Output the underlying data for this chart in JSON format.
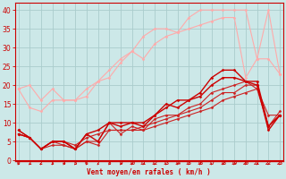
{
  "background_color": "#cce8e8",
  "grid_color": "#aacccc",
  "xlabel": "Vent moyen/en rafales ( km/h )",
  "xlabel_color": "#cc0000",
  "tick_label_color": "#cc0000",
  "axis_color": "#cc0000",
  "x_ticks": [
    0,
    1,
    2,
    3,
    4,
    5,
    6,
    7,
    8,
    9,
    10,
    11,
    12,
    13,
    14,
    15,
    16,
    17,
    18,
    19,
    20,
    21,
    22,
    23
  ],
  "ylim": [
    0,
    42
  ],
  "xlim": [
    -0.3,
    23.3
  ],
  "yticks": [
    0,
    5,
    10,
    15,
    20,
    25,
    30,
    35,
    40
  ],
  "series": [
    {
      "x": [
        0,
        1,
        2,
        3,
        4,
        5,
        6,
        7,
        8,
        9,
        10,
        11,
        12,
        13,
        14,
        15,
        16,
        17,
        18,
        19,
        20,
        21,
        22,
        23
      ],
      "y": [
        19,
        20,
        16,
        19,
        16,
        16,
        17,
        21,
        24,
        27,
        29,
        33,
        35,
        35,
        34,
        38,
        40,
        40,
        40,
        40,
        40,
        27,
        40,
        23
      ],
      "color": "#ffaaaa",
      "linewidth": 0.8,
      "marker": "D",
      "markersize": 1.5
    },
    {
      "x": [
        0,
        1,
        2,
        3,
        4,
        5,
        6,
        7,
        8,
        9,
        10,
        11,
        12,
        13,
        14,
        15,
        16,
        17,
        18,
        19,
        20,
        21,
        22,
        23
      ],
      "y": [
        19,
        14,
        13,
        16,
        16,
        16,
        19,
        21,
        22,
        26,
        29,
        27,
        31,
        33,
        34,
        35,
        36,
        37,
        38,
        38,
        22,
        27,
        27,
        23
      ],
      "color": "#ffaaaa",
      "linewidth": 0.8,
      "marker": "D",
      "markersize": 1.5
    },
    {
      "x": [
        0,
        1,
        2,
        3,
        4,
        5,
        6,
        7,
        8,
        9,
        10,
        11,
        12,
        13,
        14,
        15,
        16,
        17,
        18,
        19,
        20,
        21,
        22,
        23
      ],
      "y": [
        8,
        6,
        3,
        5,
        5,
        4,
        6,
        7,
        8,
        8,
        8,
        8,
        9,
        10,
        11,
        12,
        13,
        14,
        16,
        17,
        18,
        19,
        12,
        12
      ],
      "color": "#cc2222",
      "linewidth": 0.8,
      "marker": "D",
      "markersize": 1.5
    },
    {
      "x": [
        0,
        1,
        2,
        3,
        4,
        5,
        6,
        7,
        8,
        9,
        10,
        11,
        12,
        13,
        14,
        15,
        16,
        17,
        18,
        19,
        20,
        21,
        22,
        23
      ],
      "y": [
        7,
        6,
        3,
        4,
        4,
        3,
        5,
        4,
        8,
        8,
        8,
        9,
        10,
        11,
        12,
        13,
        14,
        16,
        18,
        18,
        20,
        20,
        9,
        13
      ],
      "color": "#cc2222",
      "linewidth": 0.8,
      "marker": "D",
      "markersize": 1.5
    },
    {
      "x": [
        0,
        1,
        2,
        3,
        4,
        5,
        6,
        7,
        8,
        9,
        10,
        11,
        12,
        13,
        14,
        15,
        16,
        17,
        18,
        19,
        20,
        21,
        22,
        23
      ],
      "y": [
        7,
        6,
        3,
        5,
        4,
        3,
        5,
        5,
        10,
        7,
        9,
        8,
        11,
        12,
        12,
        14,
        15,
        18,
        19,
        20,
        21,
        19,
        9,
        12
      ],
      "color": "#cc2222",
      "linewidth": 0.8,
      "marker": "D",
      "markersize": 1.5
    },
    {
      "x": [
        0,
        1,
        2,
        3,
        4,
        5,
        6,
        7,
        8,
        9,
        10,
        11,
        12,
        13,
        14,
        15,
        16,
        17,
        18,
        19,
        20,
        21,
        22,
        23
      ],
      "y": [
        7,
        6,
        3,
        5,
        5,
        3,
        7,
        8,
        10,
        10,
        10,
        10,
        12,
        15,
        14,
        16,
        18,
        22,
        24,
        24,
        21,
        21,
        9,
        12
      ],
      "color": "#cc0000",
      "linewidth": 1.0,
      "marker": "D",
      "markersize": 1.5
    },
    {
      "x": [
        0,
        1,
        2,
        3,
        4,
        5,
        6,
        7,
        8,
        9,
        10,
        11,
        12,
        13,
        14,
        15,
        16,
        17,
        18,
        19,
        20,
        21,
        22,
        23
      ],
      "y": [
        8,
        6,
        3,
        5,
        5,
        3,
        7,
        5,
        10,
        9,
        10,
        9,
        12,
        14,
        16,
        16,
        17,
        20,
        22,
        22,
        21,
        20,
        8,
        12
      ],
      "color": "#cc0000",
      "linewidth": 1.0,
      "marker": "D",
      "markersize": 1.5
    }
  ],
  "arrow_color": "#cc0000"
}
